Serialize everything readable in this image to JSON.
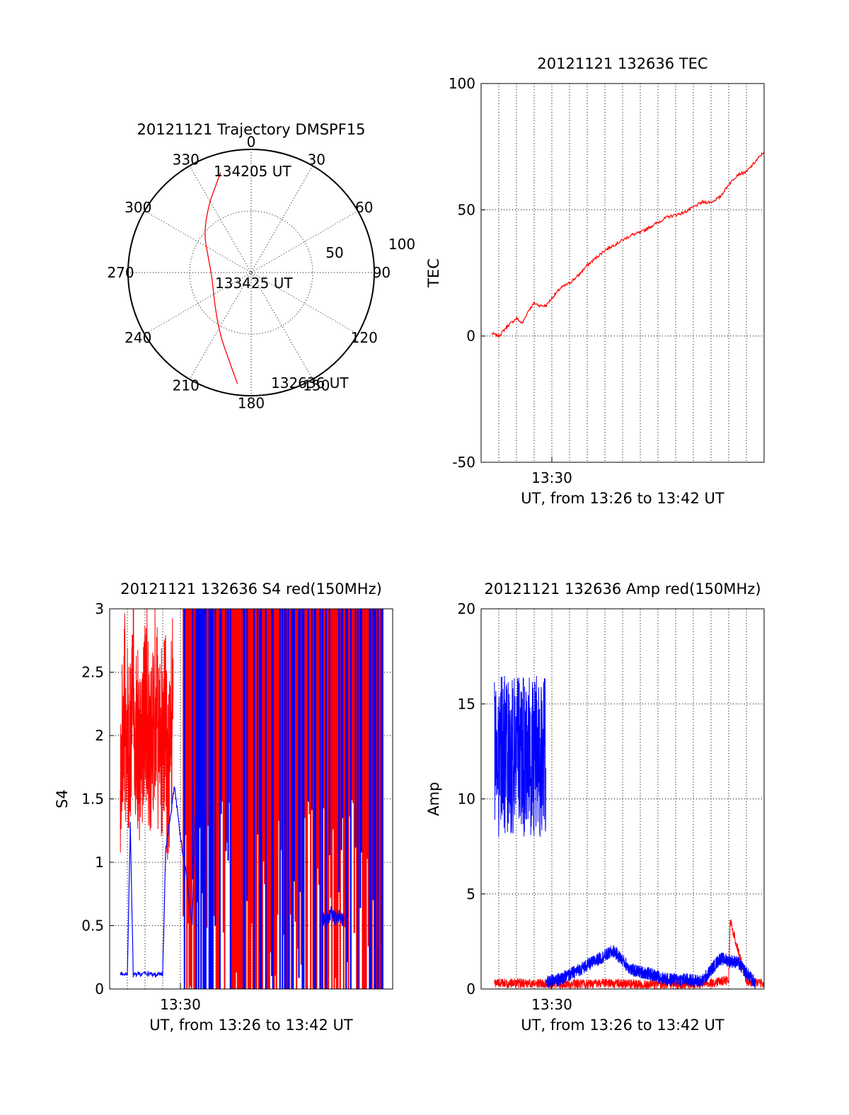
{
  "colors": {
    "red": "#ff0000",
    "blue": "#0000ff",
    "axis": "#000000",
    "grid": "#000000"
  },
  "chart_data": [
    {
      "id": "trajectory",
      "type": "polar",
      "title": "20121121 Trajectory DMSPF15",
      "azimuth_labels": [
        "0",
        "30",
        "60",
        "90",
        "120",
        "150",
        "180",
        "210",
        "240",
        "270",
        "300",
        "330"
      ],
      "radius_labels": [
        "50",
        "100"
      ],
      "rlim": [
        0,
        100
      ],
      "grid": true,
      "track_color": "red",
      "track": [
        {
          "az": 343,
          "zen": 85
        },
        {
          "az": 337,
          "zen": 75
        },
        {
          "az": 328,
          "zen": 65
        },
        {
          "az": 310,
          "zen": 50
        },
        {
          "az": 292,
          "zen": 38
        },
        {
          "az": 262,
          "zen": 32
        },
        {
          "az": 232,
          "zen": 38
        },
        {
          "az": 208,
          "zen": 55
        },
        {
          "az": 195,
          "zen": 72
        },
        {
          "az": 187,
          "zen": 91
        }
      ],
      "annotations": [
        {
          "text": "134205 UT",
          "at": "start"
        },
        {
          "text": "133425 UT",
          "at": "middle"
        },
        {
          "text": "132636 UT",
          "at": "end"
        }
      ]
    },
    {
      "id": "tec",
      "type": "line",
      "title": "20121121 132636 TEC",
      "ylabel": "TEC",
      "xlabel": "UT, from 13:26 to 13:42 UT",
      "xlim": [
        "13:26",
        "13:42"
      ],
      "ylim": [
        -50,
        100
      ],
      "yticks": [
        -50,
        0,
        50,
        100
      ],
      "xticklabels": [
        {
          "at": "13:30",
          "label": "13:30"
        }
      ],
      "grid": true,
      "series": [
        {
          "color": "red",
          "x": [
            "13:26:36",
            "13:27:00",
            "13:27:30",
            "13:28:00",
            "13:28:20",
            "13:28:40",
            "13:29:00",
            "13:29:20",
            "13:29:40",
            "13:30:00",
            "13:30:30",
            "13:31:00",
            "13:31:30",
            "13:32:00",
            "13:32:30",
            "13:33:00",
            "13:33:30",
            "13:34:00",
            "13:34:30",
            "13:35:00",
            "13:35:30",
            "13:36:00",
            "13:36:30",
            "13:37:00",
            "13:37:30",
            "13:38:00",
            "13:38:30",
            "13:39:00",
            "13:39:30",
            "13:40:00",
            "13:40:30",
            "13:41:00",
            "13:41:30",
            "13:42:00"
          ],
          "y": [
            1,
            0,
            4,
            7,
            5,
            10,
            13,
            12,
            12,
            15,
            19,
            21,
            24,
            28,
            31,
            34,
            36,
            38,
            40,
            41,
            43,
            45,
            47,
            48,
            49,
            51,
            53,
            53,
            55,
            60,
            64,
            65,
            69,
            73
          ]
        }
      ]
    },
    {
      "id": "s4",
      "type": "line",
      "title": "20121121 132636 S4 red(150MHz)",
      "ylabel": "S4",
      "xlabel": "UT, from 13:26 to 13:42 UT",
      "xlim": [
        "13:26",
        "13:42"
      ],
      "ylim": [
        0,
        3
      ],
      "yticks": [
        0,
        0.5,
        1,
        1.5,
        2,
        2.5,
        3
      ],
      "xticklabels": [
        {
          "at": "13:30",
          "label": "13:30"
        }
      ],
      "grid": true,
      "series": [
        {
          "color": "red",
          "x": [
            "13:26:36",
            "13:26:50",
            "13:27:05",
            "13:27:20",
            "13:27:35",
            "13:27:50",
            "13:28:05",
            "13:28:20",
            "13:28:35",
            "13:28:50",
            "13:29:05",
            "13:29:20",
            "13:29:35"
          ],
          "y": [
            1.5,
            2.2,
            1.9,
            2.3,
            2.0,
            1.9,
            2.3,
            1.75,
            2.4,
            1.8,
            2.2,
            1.6,
            2.3
          ]
        },
        {
          "color": "blue",
          "x": [
            "13:26:36",
            "13:27:00",
            "13:27:10",
            "13:27:20",
            "13:27:40",
            "13:28:10",
            "13:28:40",
            "13:29:00",
            "13:29:10",
            "13:29:40",
            "13:30:00",
            "13:30:20",
            "13:30:40",
            "13:31:00",
            "13:31:20"
          ],
          "y": [
            0.12,
            0.12,
            1.3,
            0.11,
            0.12,
            0.12,
            0.11,
            0.12,
            1.1,
            1.6,
            1.2,
            0.9,
            0.5,
            2.2,
            1.0
          ]
        },
        {
          "color": "blue",
          "x": [
            "13:38:00",
            "13:38:15",
            "13:38:30",
            "13:38:45",
            "13:39:00",
            "13:39:15"
          ],
          "y": [
            0.58,
            0.52,
            0.6,
            0.55,
            0.57,
            0.54
          ]
        }
      ]
    },
    {
      "id": "amp",
      "type": "line",
      "title": "20121121 132636 Amp red(150MHz)",
      "ylabel": "Amp",
      "xlabel": "UT, from 13:26 to 13:42 UT",
      "xlim": [
        "13:26",
        "13:42"
      ],
      "ylim": [
        0,
        20
      ],
      "yticks": [
        0,
        5,
        10,
        15,
        20
      ],
      "xticklabels": [
        {
          "at": "13:30",
          "label": "13:30"
        }
      ],
      "grid": true,
      "series": [
        {
          "color": "blue",
          "x": [
            "13:26:45",
            "13:27:10",
            "13:27:35",
            "13:28:00",
            "13:28:25",
            "13:28:50",
            "13:29:15",
            "13:29:40",
            "13:30:30",
            "13:31:30",
            "13:32:30",
            "13:33:30",
            "13:34:30",
            "13:35:30",
            "13:36:30",
            "13:37:30",
            "13:38:30",
            "13:39:30",
            "13:40:30",
            "13:41:30"
          ],
          "y": [
            15.5,
            8,
            16.5,
            9,
            17,
            8.5,
            16,
            0.4,
            0.5,
            1.0,
            1.5,
            2.0,
            1.0,
            0.8,
            0.5,
            0.5,
            0.4,
            1.6,
            1.4,
            0.3
          ]
        },
        {
          "color": "red",
          "x": [
            "13:26:45",
            "13:28:00",
            "13:29:30",
            "13:31:00",
            "13:33:00",
            "13:35:00",
            "13:37:00",
            "13:39:00",
            "13:40:00",
            "13:40:05",
            "13:41:00",
            "13:42:00"
          ],
          "y": [
            0.3,
            0.3,
            0.3,
            0.25,
            0.3,
            0.25,
            0.25,
            0.3,
            0.5,
            3.6,
            0.4,
            0.3
          ]
        }
      ]
    }
  ]
}
